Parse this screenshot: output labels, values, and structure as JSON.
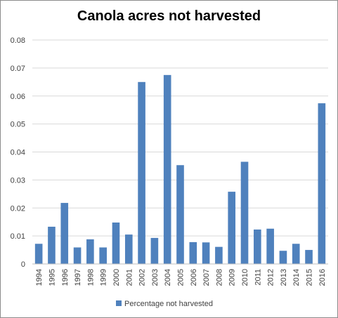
{
  "chart_data": {
    "type": "bar",
    "title": "Canola acres not harvested",
    "xlabel": "",
    "ylabel": "",
    "ylim": [
      0,
      0.08
    ],
    "yticks": [
      "0",
      "0.01",
      "0.02",
      "0.03",
      "0.04",
      "0.05",
      "0.06",
      "0.07",
      "0.08"
    ],
    "grid": true,
    "legend": "bottom",
    "categories": [
      "1994",
      "1995",
      "1996",
      "1997",
      "1998",
      "1999",
      "2000",
      "2001",
      "2002",
      "2003",
      "2004",
      "2005",
      "2006",
      "2007",
      "2008",
      "2009",
      "2010",
      "2011",
      "2012",
      "2013",
      "2014",
      "2015",
      "2016"
    ],
    "series": [
      {
        "name": "Percentage not harvested",
        "color": "#4f81bd",
        "values": [
          0.0072,
          0.0133,
          0.0218,
          0.0059,
          0.0088,
          0.0059,
          0.0148,
          0.0105,
          0.065,
          0.0093,
          0.0675,
          0.0353,
          0.0078,
          0.0077,
          0.0061,
          0.0258,
          0.0365,
          0.0123,
          0.0126,
          0.0047,
          0.0072,
          0.005,
          0.0574
        ]
      }
    ]
  }
}
